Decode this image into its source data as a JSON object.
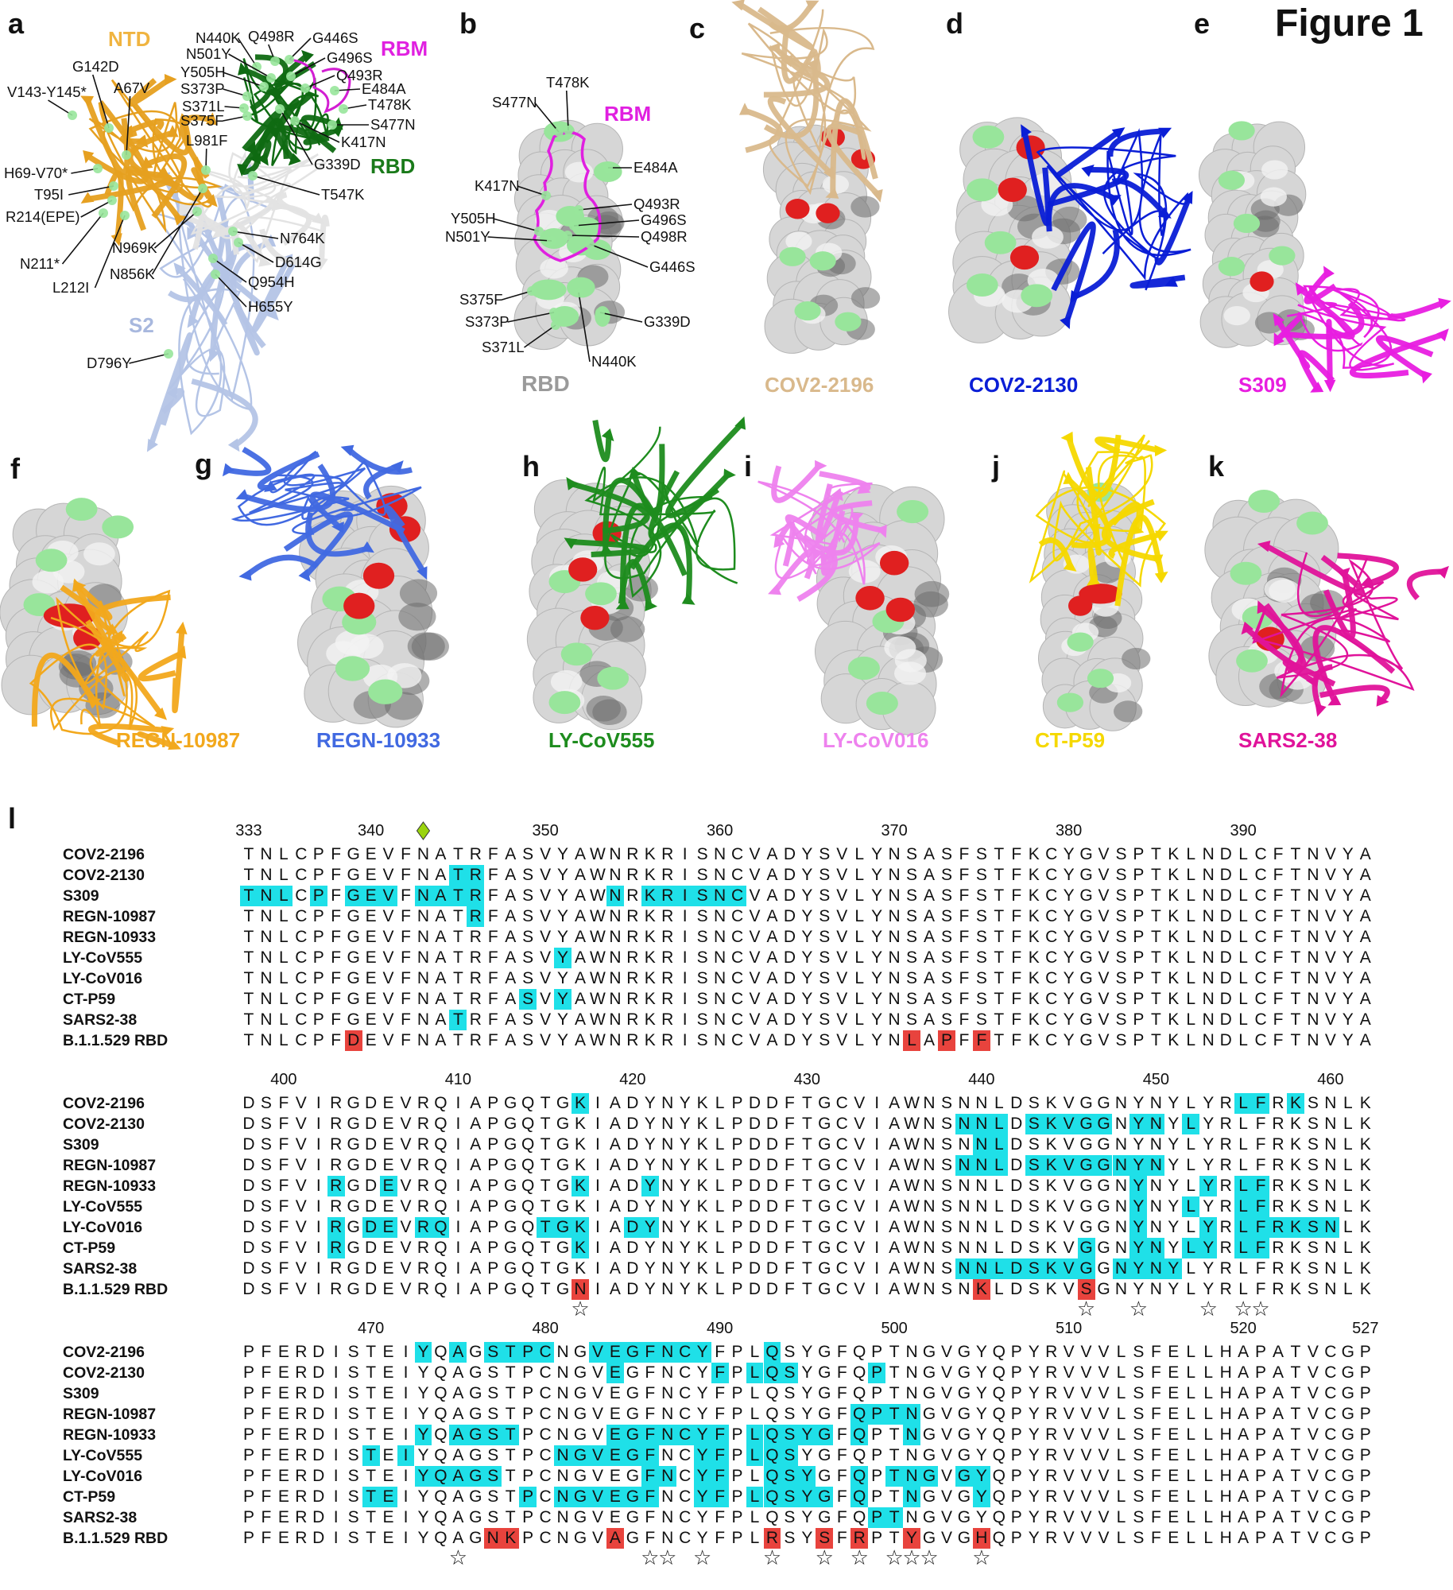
{
  "figure_title": "Figure 1",
  "panel_a": {
    "label": "a",
    "regions": {
      "ntd": "NTD",
      "rbm": "RBM",
      "rbd": "RBD",
      "s2": "S2"
    },
    "mutations": [
      "G142D",
      "V143-Y145*",
      "A67V",
      "H69-V70*",
      "T95I",
      "R214(EPE)",
      "N211*",
      "L212I",
      "N969K",
      "N856K",
      "L981F",
      "T547K",
      "N764K",
      "D614G",
      "Q954H",
      "H655Y",
      "D796Y",
      "N440K",
      "Q498R",
      "G446S",
      "N501Y",
      "G496S",
      "Y505H",
      "Q493R",
      "S373P",
      "E484A",
      "S371L",
      "T478K",
      "S375F",
      "S477N",
      "K417N",
      "G339D"
    ]
  },
  "panel_b": {
    "label": "b",
    "rbm": "RBM",
    "rbd": "RBD",
    "mutations": [
      "T478K",
      "S477N",
      "E484A",
      "K417N",
      "Q493R",
      "Y505H",
      "G496S",
      "N501Y",
      "Q498R",
      "G446S",
      "S375F",
      "S373P",
      "G339D",
      "S371L",
      "N440K"
    ]
  },
  "antibody_panels": [
    {
      "label": "c",
      "name": "COV2-2196",
      "color": "#d9b98c"
    },
    {
      "label": "d",
      "name": "COV2-2130",
      "color": "#0a1ed6"
    },
    {
      "label": "e",
      "name": "S309",
      "color": "#e81ee0"
    },
    {
      "label": "f",
      "name": "REGN-10987",
      "color": "#f2a81c"
    },
    {
      "label": "g",
      "name": "REGN-10933",
      "color": "#4169e1"
    },
    {
      "label": "h",
      "name": "LY-CoV555",
      "color": "#1e8c1e"
    },
    {
      "label": "i",
      "name": "LY-CoV016",
      "color": "#ee82ee"
    },
    {
      "label": "j",
      "name": "CT-P59",
      "color": "#f5d800"
    },
    {
      "label": "k",
      "name": "SARS2-38",
      "color": "#e0139a"
    }
  ],
  "colors": {
    "highlight": "#1fe0e8",
    "mutation": "#e8433d",
    "surface_mutation": "#98e59b",
    "epitope_mutation": "#e02020",
    "glycan_marker": "#9ad40f"
  },
  "alignment": {
    "label": "l",
    "names": [
      "COV2-2196",
      "COV2-2130",
      "S309",
      "REGN-10987",
      "REGN-10933",
      "LY-CoV555",
      "LY-CoV016",
      "CT-P59",
      "SARS2-38",
      "B.1.1.529 RBD"
    ],
    "glycan_marker_position": 343,
    "blocks": [
      {
        "start": 333,
        "ticks": [
          333,
          340,
          350,
          360,
          370,
          380,
          390
        ],
        "sequences": [
          "TNLCPFGEVFNATRFASVYAWNRKRISNCVADYSVLYNSASFSTFKCYGVSPTKLNDLCFTNVYA",
          "TNLCPFGEVFNATRFASVYAWNRKRISNCVADYSVLYNSASFSTFKCYGVSPTKLNDLCFTNVYA",
          "TNLCPFGEVFNATRFASVYAWNRKRISNCVADYSVLYNSASFSTFKCYGVSPTKLNDLCFTNVYA",
          "TNLCPFGEVFNATRFASVYAWNRKRISNCVADYSVLYNSASFSTFKCYGVSPTKLNDLCFTNVYA",
          "TNLCPFGEVFNATRFASVYAWNRKRISNCVADYSVLYNSASFSTFKCYGVSPTKLNDLCFTNVYA",
          "TNLCPFGEVFNATRFASVYAWNRKRISNCVADYSVLYNSASFSTFKCYGVSPTKLNDLCFTNVYA",
          "TNLCPFGEVFNATRFASVYAWNRKRISNCVADYSVLYNSASFSTFKCYGVSPTKLNDLCFTNVYA",
          "TNLCPFGEVFNATRFASVYAWNRKRISNCVADYSVLYNSASFSTFKCYGVSPTKLNDLCFTNVYA",
          "TNLCPFGEVFNATRFASVYAWNRKRISNCVADYSVLYNSASFSTFKCYGVSPTKLNDLCFTNVYA",
          "TNLCPFDEVFNATRFASVYAWNRKRISNCVADYSVLYNLAPFFTFKCYGVSPTKLNDLCFTNVYA"
        ],
        "highlights": [
          [],
          [
            345,
            346
          ],
          [
            333,
            334,
            335,
            337,
            339,
            340,
            341,
            343,
            344,
            345,
            346,
            354,
            356,
            357,
            358,
            359,
            360,
            361
          ],
          [
            346
          ],
          [],
          [
            351
          ],
          [],
          [
            349,
            351
          ],
          [
            345
          ],
          []
        ],
        "mutations": [
          339,
          371,
          373,
          375
        ],
        "stars": []
      },
      {
        "start": 398,
        "ticks": [
          400,
          410,
          420,
          430,
          440,
          450,
          460
        ],
        "sequences": [
          "DSFVIRGDEVRQIAPGQTGKIADYNYKLPDDFTGCVIAWNSNNLDSKVGGNYNYLYRLFRKSNLK",
          "DSFVIRGDEVRQIAPGQTGKIADYNYKLPDDFTGCVIAWNSNNLDSKVGGNYNYLYRLFRKSNLK",
          "DSFVIRGDEVRQIAPGQTGKIADYNYKLPDDFTGCVIAWNSNNLDSKVGGNYNYLYRLFRKSNLK",
          "DSFVIRGDEVRQIAPGQTGKIADYNYKLPDDFTGCVIAWNSNNLDSKVGGNYNYLYRLFRKSNLK",
          "DSFVIRGDEVRQIAPGQTGKIADYNYKLPDDFTGCVIAWNSNNLDSKVGGNYNYLYRLFRKSNLK",
          "DSFVIRGDEVRQIAPGQTGKIADYNYKLPDDFTGCVIAWNSNNLDSKVGGNYNYLYRLFRKSNLK",
          "DSFVIRGDEVRQIAPGQTGKIADYNYKLPDDFTGCVIAWNSNNLDSKVGGNYNYLYRLFRKSNLK",
          "DSFVIRGDEVRQIAPGQTGKIADYNYKLPDDFTGCVIAWNSNNLDSKVGGNYNYLYRLFRKSNLK",
          "DSFVIRGDEVRQIAPGQTGKIADYNYKLPDDFTGCVIAWNSNNLDSKVGGNYNYLYRLFRKSNLK",
          "DSFVIRGDEVRQIAPGQTGNIADYNYKLPDDFTGCVIAWNSNKLDSKVSGNYNYLYRLFRKSNLK"
        ],
        "highlights": [
          [
            417,
            455,
            456,
            458
          ],
          [
            439,
            440,
            441,
            443,
            444,
            445,
            446,
            447,
            449,
            450,
            452
          ],
          [
            440,
            441
          ],
          [
            439,
            440,
            441,
            443,
            444,
            445,
            446,
            447,
            448,
            449,
            450
          ],
          [
            403,
            406,
            417,
            421,
            449,
            453,
            455,
            456
          ],
          [
            449,
            452,
            455,
            456
          ],
          [
            403,
            405,
            406,
            408,
            409,
            415,
            416,
            417,
            420,
            421,
            449,
            453,
            455,
            456,
            457,
            458,
            459,
            460
          ],
          [
            403,
            417,
            446,
            449,
            450,
            452,
            453,
            455,
            456
          ],
          [
            439,
            440,
            441,
            442,
            443,
            444,
            445,
            446,
            448,
            449,
            450,
            451
          ],
          []
        ],
        "mutations": [
          417,
          440,
          446
        ],
        "stars": [
          417,
          446,
          449,
          453,
          455,
          456
        ]
      },
      {
        "start": 463,
        "ticks": [
          470,
          480,
          490,
          500,
          510,
          520,
          527
        ],
        "sequences": [
          "PFERDISTEIYQAGSTPCNGVEGFNCYFPLQSYGFQPTNGVGYQPYRVVVLSFELLHAPATVCGP",
          "PFERDISTEIYQAGSTPCNGVEGFNCYFPLQSYGFQPTNGVGYQPYRVVVLSFELLHAPATVCGP",
          "PFERDISTEIYQAGSTPCNGVEGFNCYFPLQSYGFQPTNGVGYQPYRVVVLSFELLHAPATVCGP",
          "PFERDISTEIYQAGSTPCNGVEGFNCYFPLQSYGFQPTNGVGYQPYRVVVLSFELLHAPATVCGP",
          "PFERDISTEIYQAGSTPCNGVEGFNCYFPLQSYGFQPTNGVGYQPYRVVVLSFELLHAPATVCGP",
          "PFERDISTEIYQAGSTPCNGVEGFNCYFPLQSYGFQPTNGVGYQPYRVVVLSFELLHAPATVCGP",
          "PFERDISTEIYQAGSTPCNGVEGFNCYFPLQSYGFQPTNGVGYQPYRVVVLSFELLHAPATVCGP",
          "PFERDISTEIYQAGSTPCNGVEGFNCYFPLQSYGFQPTNGVGYQPYRVVVLSFELLHAPATVCGP",
          "PFERDISTEIYQAGSTPCNGVEGFNCYFPLQSYGFQPTNGVGYQPYRVVVLSFELLHAPATVCGP",
          "PFERDISTEIYQAGNKPCNGVAGFNCYFPLRSYSFRPTYGVGHQPYRVVVLSFELLHAPATVCGP"
        ],
        "highlights": [
          [
            473,
            475,
            477,
            478,
            479,
            480,
            483,
            484,
            485,
            486,
            487,
            488,
            489,
            493
          ],
          [
            484,
            490,
            492,
            493,
            494,
            499
          ],
          [],
          [
            498,
            499,
            500,
            501
          ],
          [
            473,
            475,
            476,
            477,
            478,
            484,
            485,
            486,
            487,
            488,
            489,
            490,
            492,
            493,
            494,
            495,
            496,
            498,
            501
          ],
          [
            470,
            472,
            481,
            482,
            483,
            484,
            485,
            486,
            489,
            490,
            492,
            493,
            494
          ],
          [
            473,
            474,
            475,
            476,
            477,
            486,
            487,
            489,
            490,
            493,
            494,
            495,
            498,
            500,
            501,
            502,
            504,
            505
          ],
          [
            470,
            471,
            479,
            481,
            482,
            483,
            484,
            485,
            486,
            489,
            490,
            492,
            493,
            494,
            495,
            496,
            498,
            501,
            505
          ],
          [
            499,
            500
          ],
          []
        ],
        "mutations": [
          477,
          478,
          484,
          493,
          496,
          498,
          501,
          505
        ],
        "stars": [
          475,
          486,
          487,
          489,
          493,
          496,
          498,
          500,
          501,
          502,
          505
        ]
      }
    ]
  }
}
